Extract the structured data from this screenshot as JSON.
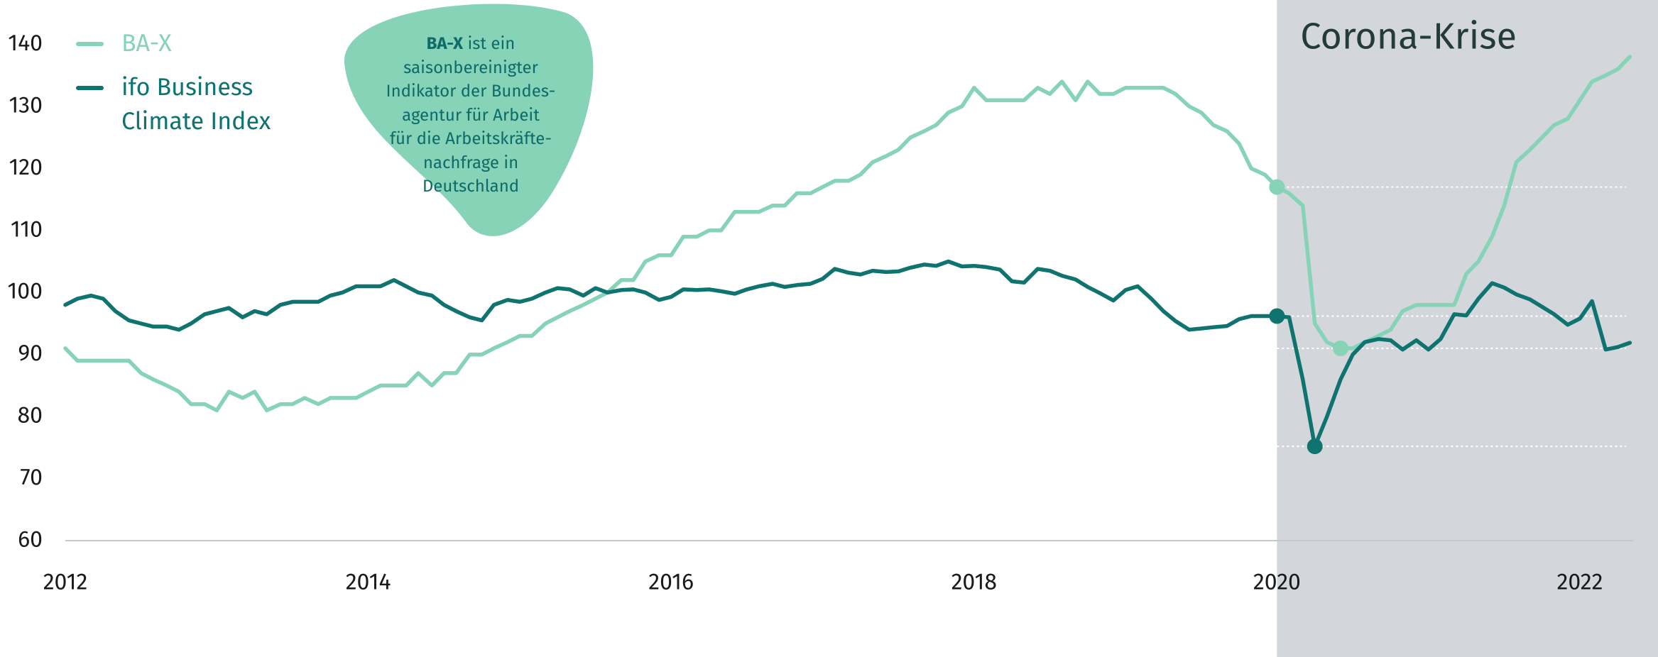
{
  "chart_data": {
    "type": "line",
    "x": [
      2012,
      2012.08,
      2012.17,
      2012.25,
      2012.33,
      2012.42,
      2012.5,
      2012.58,
      2012.67,
      2012.75,
      2012.83,
      2012.92,
      2013,
      2013.08,
      2013.17,
      2013.25,
      2013.33,
      2013.42,
      2013.5,
      2013.58,
      2013.67,
      2013.75,
      2013.83,
      2013.92,
      2014,
      2014.08,
      2014.17,
      2014.25,
      2014.33,
      2014.42,
      2014.5,
      2014.58,
      2014.67,
      2014.75,
      2014.83,
      2014.92,
      2015,
      2015.08,
      2015.17,
      2015.25,
      2015.33,
      2015.42,
      2015.5,
      2015.58,
      2015.67,
      2015.75,
      2015.83,
      2015.92,
      2016,
      2016.08,
      2016.17,
      2016.25,
      2016.33,
      2016.42,
      2016.5,
      2016.58,
      2016.67,
      2016.75,
      2016.83,
      2016.92,
      2017,
      2017.08,
      2017.17,
      2017.25,
      2017.33,
      2017.42,
      2017.5,
      2017.58,
      2017.67,
      2017.75,
      2017.83,
      2017.92,
      2018,
      2018.08,
      2018.17,
      2018.25,
      2018.33,
      2018.42,
      2018.5,
      2018.58,
      2018.67,
      2018.75,
      2018.83,
      2018.92,
      2019,
      2019.08,
      2019.17,
      2019.25,
      2019.33,
      2019.42,
      2019.5,
      2019.58,
      2019.67,
      2019.75,
      2019.83,
      2019.92,
      2020,
      2020.08,
      2020.17,
      2020.25,
      2020.33,
      2020.42,
      2020.5,
      2020.58,
      2020.67,
      2020.75,
      2020.83,
      2020.92,
      2021,
      2021.08,
      2021.17,
      2021.25,
      2021.33,
      2021.42,
      2021.5,
      2021.58,
      2021.67,
      2021.75,
      2021.83,
      2021.92,
      2022,
      2022.08,
      2022.17,
      2022.25,
      2022.33
    ],
    "series": [
      {
        "name": "BA-X",
        "color": "#86d3b8",
        "highlight_points": [
          96,
          101
        ],
        "values": [
          91,
          89,
          89,
          89,
          89,
          89,
          87,
          86,
          85,
          84,
          82,
          82,
          81,
          84,
          83,
          84,
          81,
          82,
          82,
          83,
          82,
          83,
          83,
          83,
          84,
          85,
          85,
          85,
          87,
          85,
          87,
          87,
          90,
          90,
          91,
          92,
          93,
          93,
          95,
          96,
          97,
          98,
          99,
          100,
          102,
          102,
          105,
          106,
          106,
          109,
          109,
          110,
          110,
          113,
          113,
          113,
          114,
          114,
          116,
          116,
          117,
          118,
          118,
          119,
          121,
          122,
          123,
          125,
          126,
          127,
          129,
          130,
          133,
          131,
          131,
          131,
          131,
          133,
          132,
          134,
          131,
          134,
          132,
          132,
          133,
          133,
          133,
          133,
          132,
          130,
          129,
          127,
          126,
          124,
          120,
          119,
          117,
          116,
          114,
          95,
          92,
          91,
          91,
          92,
          93,
          94,
          97,
          98,
          98,
          98,
          98,
          103,
          105,
          109,
          114,
          121,
          123,
          125,
          127,
          128,
          131,
          134,
          135,
          136,
          138
        ]
      },
      {
        "name": "ifo Business Climate Index",
        "color": "#0f7370",
        "highlight_points": [
          96,
          99
        ],
        "values": [
          98,
          99,
          99.5,
          99,
          97,
          95.5,
          95,
          94.5,
          94.5,
          94,
          95,
          96.5,
          97,
          97.5,
          96,
          97,
          96.5,
          98,
          98.5,
          98.5,
          98.5,
          99.5,
          100,
          101,
          101,
          101,
          102,
          101,
          100,
          99.5,
          98,
          97,
          96,
          95.5,
          98,
          98.8,
          98.5,
          99,
          100,
          100.7,
          100.5,
          99.5,
          100.7,
          100,
          100.4,
          100.5,
          100,
          98.8,
          99.3,
          100.5,
          100.4,
          100.5,
          100.2,
          99.8,
          100.5,
          101,
          101.4,
          100.9,
          101.2,
          101.4,
          102.2,
          103.8,
          103.2,
          102.9,
          103.5,
          103.3,
          103.4,
          104,
          104.5,
          104.3,
          105,
          104.2,
          104.3,
          104.1,
          103.7,
          101.8,
          101.6,
          103.8,
          103.5,
          102.7,
          102.1,
          100.9,
          99.9,
          98.7,
          100.4,
          101,
          99,
          97,
          95.4,
          94,
          94.2,
          94.4,
          94.6,
          95.7,
          96.2,
          96.2,
          96.2,
          96,
          86,
          75.2,
          80,
          86,
          90,
          92,
          92.5,
          92.3,
          90.8,
          92.3,
          90.8,
          92.5,
          96.5,
          96.3,
          99,
          101.5,
          100.8,
          99.7,
          98.9,
          97.7,
          96.5,
          94.8,
          95.8,
          98.6,
          90.8,
          91.2,
          91.9
        ]
      }
    ],
    "xlim": [
      2012,
      2022.5
    ],
    "xticks": [
      2012,
      2014,
      2016,
      2018,
      2020,
      2022
    ],
    "ylim": [
      60,
      145
    ],
    "yticks": [
      60,
      70,
      80,
      90,
      100,
      110,
      120,
      130,
      140
    ],
    "grid": false,
    "legend": "upper left",
    "shaded_region": {
      "label": "Corona-Krise",
      "x_start": 2020,
      "color": "#d3d7db"
    },
    "callout": {
      "title": "BA-X",
      "lines": [
        "ist ein",
        "saisonbereinigter",
        "Indikator der Bundes-",
        "agentur für Arbeit",
        "für die Arbeitskräfte-",
        "nachfrage in",
        "Deutschland"
      ]
    }
  }
}
